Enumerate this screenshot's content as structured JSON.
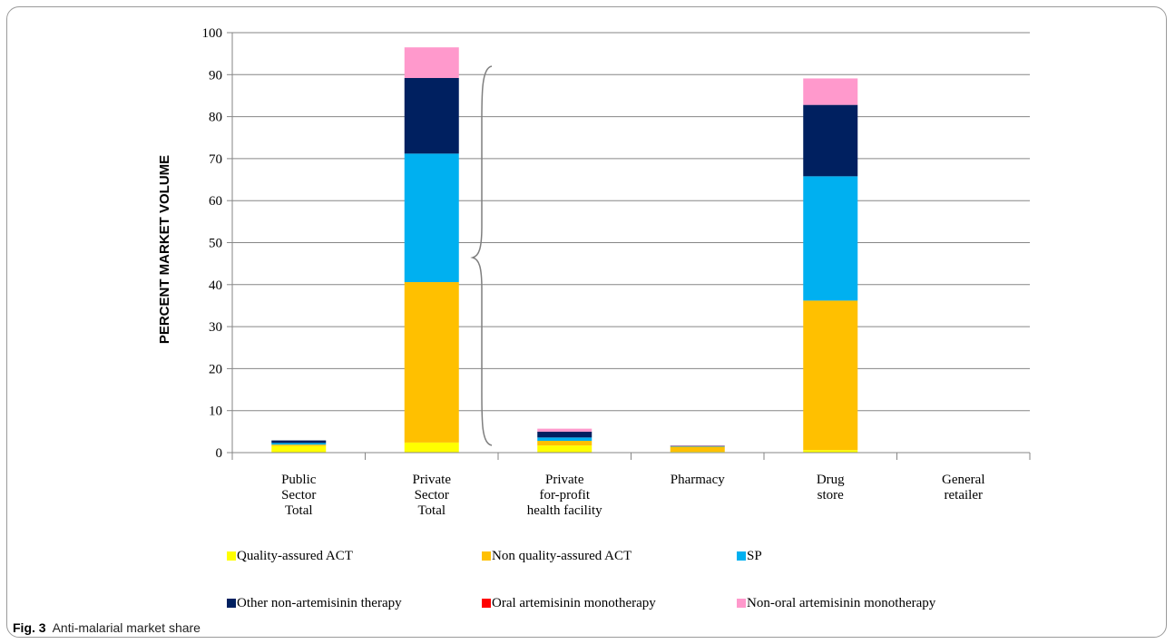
{
  "caption": {
    "label": "Fig. 3",
    "text": "Anti-malarial market share"
  },
  "chart_data": {
    "type": "bar",
    "stacked": true,
    "title": "",
    "xlabel": "",
    "ylabel": "PERCENT MARKET VOLUME",
    "ylim": [
      0,
      100
    ],
    "yticks": [
      0,
      10,
      20,
      30,
      40,
      50,
      60,
      70,
      80,
      90,
      100
    ],
    "grid": true,
    "legend_position": "bottom",
    "categories": [
      [
        "Public",
        "Sector",
        "Total"
      ],
      [
        "Private",
        "Sector",
        "Total"
      ],
      [
        "Private",
        "for-profit",
        "health facility"
      ],
      [
        "Pharmacy"
      ],
      [
        "Drug",
        "store"
      ],
      [
        "General",
        "retailer"
      ]
    ],
    "series": [
      {
        "name": "Quality-assured ACT",
        "color": "#ffff00",
        "values": [
          1.6,
          2.4,
          1.7,
          0.2,
          0.6,
          0
        ]
      },
      {
        "name": "Non quality-assured ACT",
        "color": "#ffc000",
        "values": [
          0.3,
          38.2,
          1.1,
          1.2,
          35.6,
          0
        ]
      },
      {
        "name": "SP",
        "color": "#00b0f0",
        "values": [
          0.4,
          30.6,
          0.8,
          0.1,
          29.6,
          0
        ]
      },
      {
        "name": "Other non-artemisinin therapy",
        "color": "#002060",
        "values": [
          0.6,
          18.0,
          1.4,
          0.1,
          17.0,
          0
        ]
      },
      {
        "name": "Oral artemisinin monotherapy",
        "color": "#ff0000",
        "values": [
          0,
          0,
          0,
          0,
          0,
          0
        ]
      },
      {
        "name": "Non-oral artemisinin monotherapy",
        "color": "#ff99cc",
        "values": [
          0,
          7.3,
          0.7,
          0.1,
          6.3,
          0
        ]
      }
    ],
    "annotation": "brace"
  }
}
